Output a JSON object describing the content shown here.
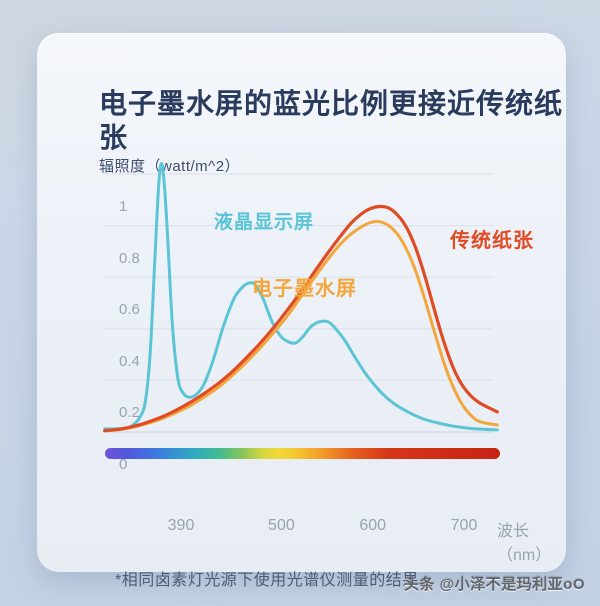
{
  "card": {
    "title": "电子墨水屏的蓝光比例更接近传统纸张",
    "footnote": "*相同卤素灯光源下使用光谱仪测量的结果。"
  },
  "watermark": "头条 @小泽不是玛利亚oO",
  "colors": {
    "title": "#2b3b5e",
    "tick_text": "#98a3b2",
    "background": "#c5d3e6",
    "card": "#edf1f7",
    "gridline": "#dce3ec",
    "baseline": "#d3dbe6"
  },
  "chart_data": {
    "type": "line",
    "title": "电子墨水屏的蓝光比例更接近传统纸张",
    "ylabel": "辐照度（watt/m^2）",
    "xlabel": "波长（nm）",
    "xlim": [
      347,
      777
    ],
    "ylim": [
      0,
      1.05
    ],
    "grid": true,
    "legend_position": "inline-annotations",
    "x_ticks": [
      390,
      500,
      600,
      700
    ],
    "x_tick_labels": [
      "390",
      "500",
      "600",
      "700"
    ],
    "y_ticks": [
      0,
      0.2,
      0.4,
      0.6,
      0.8,
      1
    ],
    "y_tick_labels": [
      "0",
      "0.2",
      "0.4",
      "0.6",
      "0.8",
      "1"
    ],
    "series": [
      {
        "name": "液晶显示屏",
        "color": "#5BC4D6",
        "x": [
          347,
          362,
          375,
          386,
          392,
          397,
          402,
          406,
          409,
          412,
          416,
          421,
          427,
          433,
          440,
          447,
          455,
          465,
          477,
          489,
          499,
          506,
          512,
          520,
          530,
          540,
          548,
          556,
          563,
          572,
          580,
          587,
          593,
          600,
          610,
          622,
          634,
          648,
          662,
          678,
          695,
          712,
          730,
          750,
          777
        ],
        "values": [
          0.012,
          0.013,
          0.02,
          0.06,
          0.13,
          0.32,
          0.68,
          0.95,
          1.04,
          0.97,
          0.75,
          0.42,
          0.21,
          0.15,
          0.135,
          0.145,
          0.18,
          0.27,
          0.41,
          0.52,
          0.565,
          0.578,
          0.57,
          0.52,
          0.43,
          0.37,
          0.35,
          0.345,
          0.365,
          0.405,
          0.425,
          0.43,
          0.425,
          0.4,
          0.355,
          0.285,
          0.22,
          0.16,
          0.115,
          0.08,
          0.052,
          0.035,
          0.022,
          0.013,
          0.008
        ]
      },
      {
        "name": "电子墨水屏",
        "color": "#F2A63C",
        "x": [
          347,
          365,
          382,
          397,
          412,
          427,
          442,
          457,
          472,
          487,
          502,
          517,
          532,
          547,
          562,
          577,
          592,
          605,
          617,
          628,
          638,
          648,
          658,
          668,
          678,
          688,
          698,
          708,
          718,
          728,
          738,
          748,
          758,
          777
        ],
        "values": [
          0.004,
          0.01,
          0.022,
          0.037,
          0.055,
          0.078,
          0.105,
          0.138,
          0.175,
          0.22,
          0.27,
          0.325,
          0.385,
          0.45,
          0.525,
          0.6,
          0.672,
          0.728,
          0.768,
          0.795,
          0.812,
          0.815,
          0.8,
          0.765,
          0.705,
          0.62,
          0.51,
          0.39,
          0.275,
          0.18,
          0.11,
          0.065,
          0.04,
          0.027
        ]
      },
      {
        "name": "传统纸张",
        "color": "#E04B24",
        "x": [
          347,
          365,
          382,
          397,
          412,
          427,
          442,
          457,
          472,
          487,
          502,
          517,
          532,
          547,
          562,
          577,
          592,
          605,
          617,
          628,
          638,
          648,
          658,
          668,
          678,
          688,
          698,
          708,
          718,
          728,
          738,
          748,
          758,
          777
        ],
        "values": [
          0.005,
          0.012,
          0.025,
          0.042,
          0.062,
          0.088,
          0.118,
          0.152,
          0.19,
          0.235,
          0.287,
          0.343,
          0.405,
          0.472,
          0.545,
          0.622,
          0.697,
          0.758,
          0.81,
          0.845,
          0.866,
          0.874,
          0.868,
          0.84,
          0.79,
          0.71,
          0.6,
          0.475,
          0.355,
          0.255,
          0.185,
          0.14,
          0.112,
          0.078
        ]
      }
    ],
    "spectrum_bar_gradient": [
      {
        "pos": 0.0,
        "color": "#7152D6"
      },
      {
        "pos": 0.06,
        "color": "#4E59DC"
      },
      {
        "pos": 0.14,
        "color": "#3B7FDE"
      },
      {
        "pos": 0.22,
        "color": "#2FA8C4"
      },
      {
        "pos": 0.29,
        "color": "#41BC8E"
      },
      {
        "pos": 0.35,
        "color": "#8BC657"
      },
      {
        "pos": 0.4,
        "color": "#D8D63F"
      },
      {
        "pos": 0.44,
        "color": "#F2DA37"
      },
      {
        "pos": 0.5,
        "color": "#F4BC2F"
      },
      {
        "pos": 0.56,
        "color": "#F09428"
      },
      {
        "pos": 0.63,
        "color": "#E4601F"
      },
      {
        "pos": 0.72,
        "color": "#D63519"
      },
      {
        "pos": 1.0,
        "color": "#C62313"
      }
    ]
  }
}
